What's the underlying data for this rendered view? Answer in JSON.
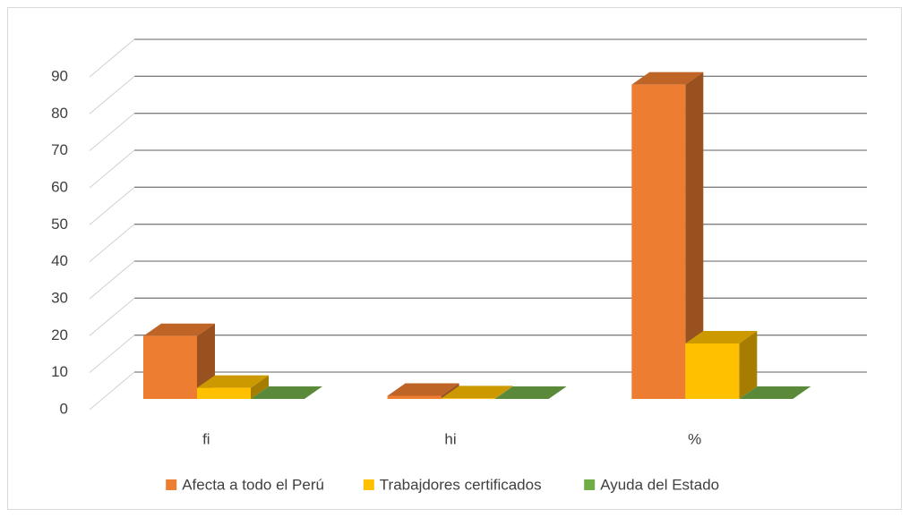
{
  "chart_data": {
    "type": "bar3d",
    "categories": [
      "fi",
      "hi",
      "%"
    ],
    "series": [
      {
        "name": "Afecta a todo el Perú",
        "color": "#ED7D31",
        "values": [
          17,
          0.85,
          85
        ]
      },
      {
        "name": "Trabajdores certificados",
        "color": "#FFC000",
        "values": [
          3,
          0.15,
          15
        ]
      },
      {
        "name": "Ayuda del Estado",
        "color": "#70AD47",
        "values": [
          0,
          0,
          0
        ]
      }
    ],
    "ylim": [
      0,
      90
    ],
    "yticks": [
      0,
      10,
      20,
      30,
      40,
      50,
      60,
      70,
      80,
      90
    ],
    "grid": true,
    "legend": "bottom"
  }
}
